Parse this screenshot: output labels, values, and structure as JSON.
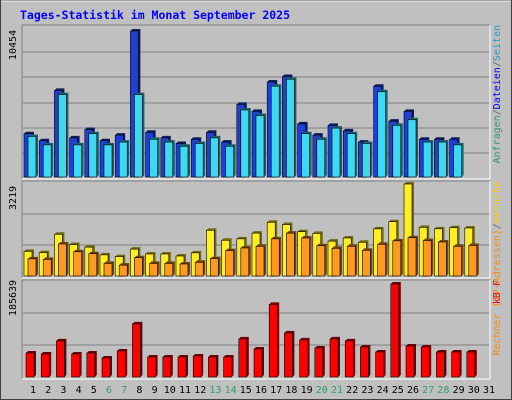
{
  "chart_data": {
    "type": "bar",
    "title": "Tages-Statistik im Monat September 2025",
    "categories": [
      "1",
      "2",
      "3",
      "4",
      "5",
      "6",
      "7",
      "8",
      "9",
      "10",
      "11",
      "12",
      "13",
      "14",
      "15",
      "16",
      "17",
      "18",
      "19",
      "20",
      "21",
      "22",
      "23",
      "24",
      "25",
      "26",
      "27",
      "28",
      "29",
      "30",
      "31"
    ],
    "weekend_days": [
      "6",
      "7",
      "13",
      "14",
      "20",
      "21",
      "27",
      "28"
    ],
    "legend_right": {
      "top": {
        "parts": [
          "Anfragen",
          "/",
          "Dateien",
          "/",
          "Seiten"
        ],
        "colors": [
          "#339966",
          "#666666",
          "#0000ff",
          "#666666",
          "#2299cc"
        ]
      },
      "middle": {
        "parts": [
          "Rechner (IP-Adressen)",
          "/",
          "Besuche"
        ],
        "colors": [
          "#ff8800",
          "#666666",
          "#ffcc00"
        ]
      },
      "bottom": {
        "parts": [
          "kB F"
        ],
        "colors": [
          "#ff0000"
        ]
      }
    },
    "panels": [
      {
        "id": "top",
        "max_label": "10454",
        "ymax": 10454,
        "series": [
          {
            "name": "Anfragen",
            "color": "#1f3fd6",
            "values": [
              3100,
              2600,
              6200,
              2800,
              3400,
              2600,
              3000,
              10454,
              3200,
              2800,
              2400,
              2700,
              3200,
              2500,
              5200,
              4700,
              6800,
              7200,
              3800,
              3000,
              3700,
              3300,
              2500,
              6500,
              4000,
              4700,
              2700,
              2700,
              2700,
              0,
              0
            ]
          },
          {
            "name": "Dateien",
            "color": "#3dd9f2",
            "values": [
              2900,
              2300,
              5900,
              2300,
              3100,
              2300,
              2500,
              5900,
              2700,
              2500,
              2200,
              2400,
              2800,
              2200,
              4800,
              4400,
              6500,
              7000,
              3100,
              2700,
              3500,
              3100,
              2400,
              6100,
              3700,
              4100,
              2500,
              2500,
              2300,
              0,
              0
            ]
          },
          {
            "name": "Seiten",
            "color": "#2299cc",
            "values": [
              0,
              0,
              0,
              0,
              0,
              0,
              0,
              0,
              0,
              0,
              0,
              0,
              0,
              0,
              0,
              0,
              0,
              0,
              0,
              0,
              0,
              0,
              0,
              0,
              0,
              0,
              0,
              0,
              0,
              0,
              0
            ]
          }
        ]
      },
      {
        "id": "middle",
        "max_label": "3219",
        "ymax": 3219,
        "series": [
          {
            "name": "Besuche",
            "color": "#ffee22",
            "values": [
              860,
              820,
              1460,
              1100,
              1010,
              740,
              680,
              940,
              770,
              770,
              700,
              810,
              1600,
              1250,
              1300,
              1500,
              1880,
              1800,
              1550,
              1490,
              1220,
              1330,
              1180,
              1650,
              1900,
              3219,
              1700,
              1650,
              1690,
              1680,
              0
            ]
          },
          {
            "name": "Rechner (IP-Adressen)",
            "color": "#ff9922",
            "values": [
              600,
              580,
              1120,
              850,
              780,
              440,
              380,
              640,
              440,
              440,
              420,
              480,
              610,
              890,
              980,
              1040,
              1300,
              1500,
              1330,
              1060,
              970,
              1040,
              900,
              1110,
              1230,
              1340,
              1240,
              1190,
              1040,
              1070,
              0
            ]
          }
        ]
      },
      {
        "id": "bottom",
        "max_label": "185639",
        "ymax": 185639,
        "series": [
          {
            "name": "kB F",
            "color": "#ff0000",
            "values": [
              48000,
              46000,
              72000,
              46000,
              48000,
              38000,
              52000,
              106000,
              40000,
              40000,
              40000,
              42000,
              40000,
              40000,
              76000,
              56000,
              145000,
              88000,
              74000,
              58000,
              76000,
              72000,
              60000,
              50000,
              185639,
              62000,
              60000,
              50000,
              50000,
              50000,
              0
            ]
          }
        ]
      }
    ]
  }
}
